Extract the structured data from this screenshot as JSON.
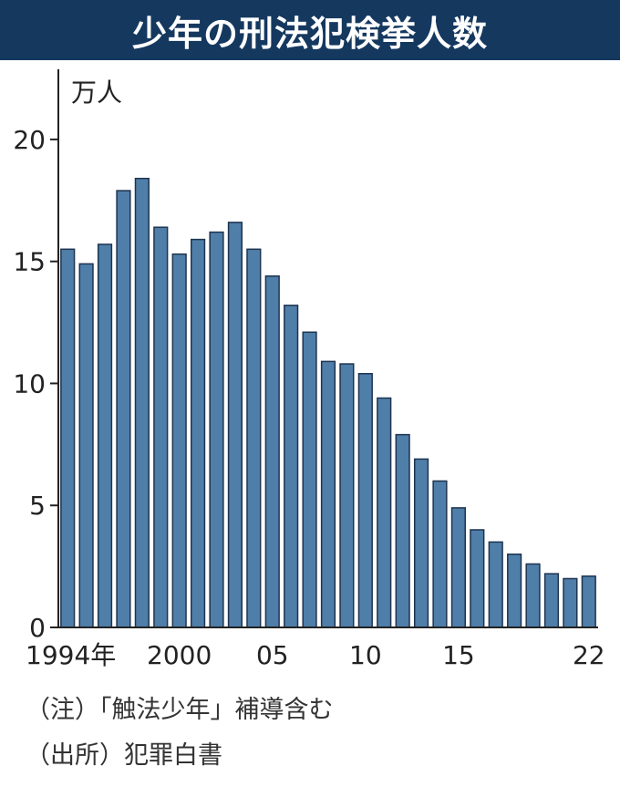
{
  "title": "少年の刑法犯検挙人数",
  "notes": {
    "note": "（注）「触法少年」補導含む",
    "source": "（出所）犯罪白書"
  },
  "colors": {
    "title_bg": "#15385f",
    "bar": "#4f7ea8",
    "bar_stroke": "#1e3450",
    "axis": "#222222"
  },
  "chart_data": {
    "type": "bar",
    "title": "少年の刑法犯検挙人数",
    "ylabel": "万人",
    "xlabel": "",
    "ylim": [
      0,
      22.5
    ],
    "yticks": [
      0,
      5,
      10,
      15,
      20
    ],
    "ytick_labels": [
      "0",
      "5",
      "10",
      "15",
      "20"
    ],
    "grid": false,
    "categories": [
      "1994",
      "1995",
      "1996",
      "1997",
      "1998",
      "1999",
      "2000",
      "2001",
      "2002",
      "2003",
      "2004",
      "2005",
      "2006",
      "2007",
      "2008",
      "2009",
      "2010",
      "2011",
      "2012",
      "2013",
      "2014",
      "2015",
      "2016",
      "2017",
      "2018",
      "2019",
      "2020",
      "2021",
      "2022"
    ],
    "values": [
      15.5,
      14.9,
      15.7,
      17.9,
      18.4,
      16.4,
      15.3,
      15.9,
      16.2,
      16.6,
      15.5,
      14.4,
      13.2,
      12.1,
      10.9,
      10.8,
      10.4,
      9.4,
      7.9,
      6.9,
      6.0,
      4.9,
      4.0,
      3.5,
      3.0,
      2.6,
      2.2,
      2.0,
      2.1
    ],
    "xtick_labels": [
      {
        "index": 0,
        "label": "1994年"
      },
      {
        "index": 6,
        "label": "2000"
      },
      {
        "index": 11,
        "label": "05"
      },
      {
        "index": 16,
        "label": "10"
      },
      {
        "index": 21,
        "label": "15"
      },
      {
        "index": 28,
        "label": "22"
      }
    ]
  }
}
